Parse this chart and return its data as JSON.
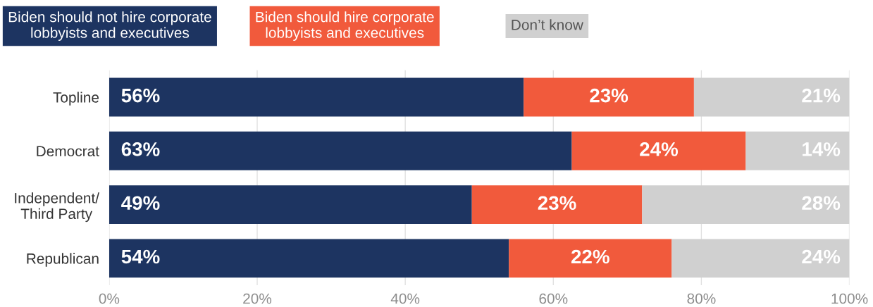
{
  "chart_data": {
    "type": "bar",
    "orientation": "horizontal",
    "stacked": true,
    "categories": [
      "Topline",
      "Democrat",
      "Independent/\nThird Party",
      "Republican"
    ],
    "series": [
      {
        "name": "Biden should not hire corporate\nlobbyists and executives",
        "color": "#1d3461",
        "values": [
          56,
          62.5,
          49,
          54
        ],
        "value_labels": [
          "56%",
          "63%",
          "49%",
          "54%"
        ]
      },
      {
        "name": "Biden should hire corporate\nlobbyists and executives",
        "color": "#f15a3c",
        "values": [
          23,
          23.5,
          23,
          22
        ],
        "value_labels": [
          "23%",
          "24%",
          "23%",
          "22%"
        ]
      },
      {
        "name": "Don’t know",
        "color": "#d0d0d0",
        "values": [
          21,
          14,
          28,
          24
        ],
        "value_labels": [
          "21%",
          "14%",
          "28%",
          "24%"
        ]
      }
    ],
    "xlim": [
      0,
      100
    ],
    "xticks": [
      {
        "value": 0,
        "label": "0%"
      },
      {
        "value": 20,
        "label": "20%"
      },
      {
        "value": 40,
        "label": "40%"
      },
      {
        "value": 60,
        "label": "60%"
      },
      {
        "value": 80,
        "label": "80%"
      },
      {
        "value": 100,
        "label": "100%"
      }
    ],
    "grid": "x",
    "legend": "top"
  }
}
